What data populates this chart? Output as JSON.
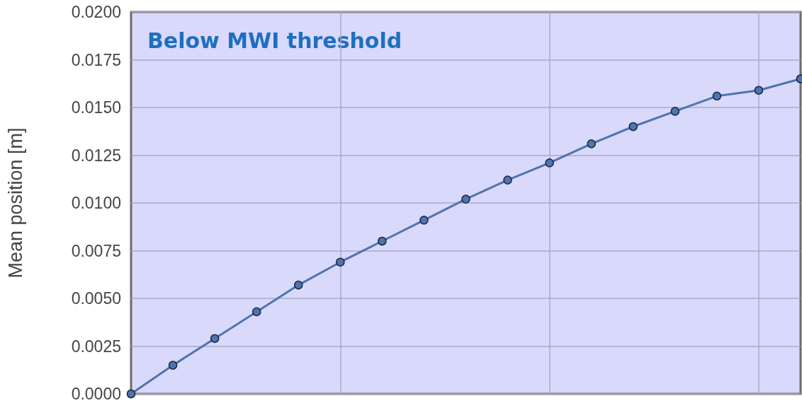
{
  "chart_data": {
    "type": "line",
    "ylabel": "Mean position [m]",
    "annotations": [
      "Below MWI threshold"
    ],
    "categories": [
      null,
      null,
      null,
      null,
      null,
      null,
      null,
      null,
      null,
      null,
      null,
      null,
      null,
      null,
      null,
      null,
      null
    ],
    "series": [
      {
        "color": "#4f74b0",
        "values": [
          0,
          0.0015,
          0.0029,
          0.0043,
          0.0057,
          0.0069,
          0.008,
          0.0091,
          0.0102,
          0.0112,
          0.0121,
          0.0131,
          0.014,
          0.0148,
          0.0156,
          0.0159,
          0.0165
        ]
      }
    ],
    "ylim": [
      0,
      0.02
    ],
    "yticks": [
      {
        "value": 0,
        "label": "0.0000"
      },
      {
        "value": 0.0025,
        "label": "0.0025"
      },
      {
        "value": 0.005,
        "label": "0.0050"
      },
      {
        "value": 0.0075,
        "label": "0.0075"
      },
      {
        "value": 0.01,
        "label": "0.0100"
      },
      {
        "value": 0.0125,
        "label": "0.0125"
      },
      {
        "value": 0.015,
        "label": "0.0150"
      },
      {
        "value": 0.0175,
        "label": "0.0175"
      },
      {
        "value": 0.02,
        "label": "0.0200"
      }
    ],
    "grid": true,
    "marker": "circle",
    "line_style": "solid",
    "tick_labels": "y"
  }
}
